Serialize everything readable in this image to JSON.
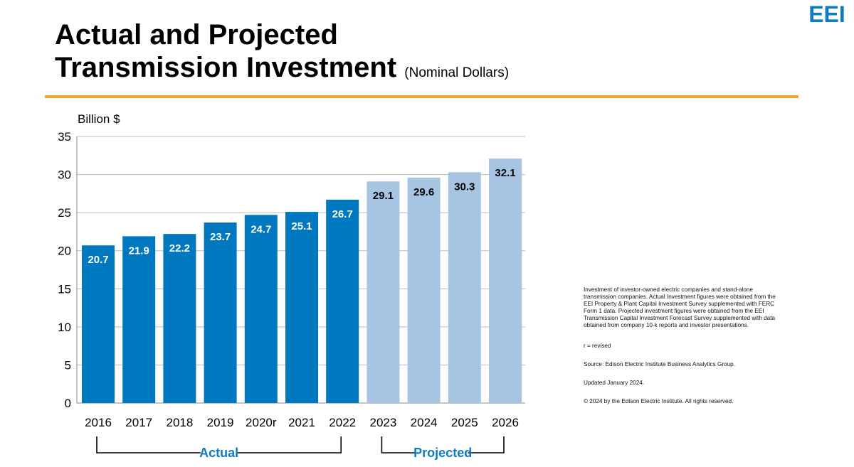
{
  "header": {
    "title_line1": "Actual and Projected",
    "title_line2": "Transmission Investment",
    "title_sub": "(Nominal Dollars)",
    "logo_text": "EEI"
  },
  "colors": {
    "actual": "#0078BF",
    "projected": "#A8C4E3",
    "accent": "#EBA92B",
    "bracket_text": "#0F7BC2",
    "grid": "#BBBBBB"
  },
  "chart_data": {
    "type": "bar",
    "ylabel": "Billion $",
    "ylim": [
      0,
      35
    ],
    "yticks": [
      0,
      5,
      10,
      15,
      20,
      25,
      30,
      35
    ],
    "grid": true,
    "categories": [
      "2016",
      "2017",
      "2018",
      "2019",
      "2020r",
      "2021",
      "2022",
      "2023",
      "2024",
      "2025",
      "2026"
    ],
    "series": [
      {
        "name": "Actual",
        "values": [
          20.7,
          21.9,
          22.2,
          23.7,
          24.7,
          25.1,
          26.7,
          null,
          null,
          null,
          null
        ]
      },
      {
        "name": "Projected",
        "values": [
          null,
          null,
          null,
          null,
          null,
          null,
          null,
          29.1,
          29.6,
          30.3,
          32.1
        ]
      }
    ],
    "data_labels": [
      "20.7",
      "21.9",
      "22.2",
      "23.7",
      "24.7",
      "25.1",
      "26.7",
      "29.1",
      "29.6",
      "30.3",
      "32.1"
    ],
    "groups": [
      {
        "label": "Actual",
        "from": "2016",
        "to": "2022"
      },
      {
        "label": "Projected",
        "from": "2023",
        "to": "2026"
      }
    ]
  },
  "notes": {
    "description": "Investment of investor-owned electric companies and stand-alone transmission companies. Actual Investment figures were obtained from the EEI Property & Plant Capital Investment Survey supplemented with FERC Form 1 data. Projected investment figures were obtained from the EEI Transmission Capital Investment Forecast Survey supplemented with data obtained from company 10-k reports and investor presentations.",
    "revised": "r = revised",
    "source": "Source: Edison Electric Institute Business Analytics Group.",
    "updated": "Updated January 2024.",
    "copyright": "© 2024 by the Edison Electric Institute. All rights reserved."
  }
}
